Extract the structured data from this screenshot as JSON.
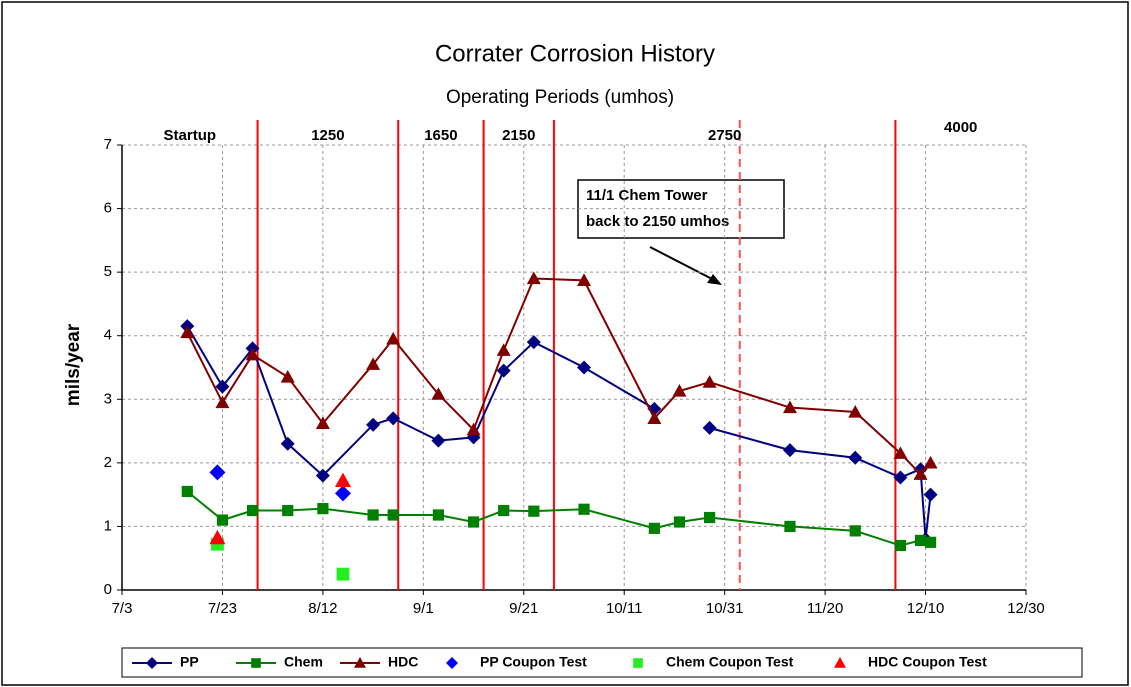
{
  "chart_data": {
    "type": "line",
    "title": "Corrater Corrosion History",
    "subtitle": "Operating Periods (umhos)",
    "y_label": "mils/year",
    "xlim": [
      "7/3",
      "12/30"
    ],
    "xticks": [
      "7/3",
      "7/23",
      "8/12",
      "9/1",
      "9/21",
      "10/11",
      "10/31",
      "11/20",
      "12/10",
      "12/30"
    ],
    "ylim": [
      0,
      7
    ],
    "yticks": [
      0,
      1,
      2,
      3,
      4,
      5,
      6,
      7
    ],
    "grid": true,
    "periods": [
      "Startup",
      "1250",
      "1650",
      "2150",
      "2750",
      "4000"
    ],
    "period_boundaries": [
      {
        "x": "7/30",
        "color": "#ff0000",
        "style": "solid"
      },
      {
        "x": "8/27",
        "color": "#ff0000",
        "style": "solid"
      },
      {
        "x": "9/13",
        "color": "#ff0000",
        "style": "solid"
      },
      {
        "x": "9/27",
        "color": "#ff0000",
        "style": "solid"
      },
      {
        "x": "12/4",
        "color": "#ff0000",
        "style": "solid"
      },
      {
        "x": "11/3",
        "color": "#ff5050",
        "style": "dashed"
      }
    ],
    "annotation": {
      "lines": [
        "11/1 Chem Tower",
        "back to 2150 umhos"
      ]
    },
    "legend": "bottom",
    "series": [
      {
        "name": "PP",
        "color": "#000080",
        "marker": "diamond",
        "line": true,
        "x": [
          "7/16",
          "7/23",
          "7/29",
          "8/5",
          "8/12",
          "8/22",
          "8/26",
          "9/4",
          "9/11",
          "9/17",
          "9/23",
          "10/3",
          "10/17",
          "10/22",
          "10/28",
          "11/13",
          "11/26",
          "12/5",
          "12/9",
          "12/10",
          "12/11"
        ],
        "values": [
          4.15,
          3.2,
          3.8,
          2.3,
          1.8,
          2.6,
          2.7,
          2.35,
          2.4,
          3.45,
          3.9,
          3.5,
          2.85,
          null,
          2.55,
          2.2,
          2.08,
          1.77,
          1.9,
          0.8,
          1.5
        ]
      },
      {
        "name": "Chem",
        "color": "#008000",
        "marker": "square",
        "line": true,
        "x": [
          "7/16",
          "7/23",
          "7/29",
          "8/5",
          "8/12",
          "8/22",
          "8/26",
          "9/4",
          "9/11",
          "9/17",
          "9/23",
          "10/3",
          "10/17",
          "10/22",
          "10/28",
          "11/13",
          "11/26",
          "12/5",
          "12/9",
          "12/11"
        ],
        "values": [
          1.55,
          1.1,
          1.25,
          1.25,
          1.28,
          1.18,
          1.18,
          1.18,
          1.07,
          1.25,
          1.24,
          1.27,
          0.97,
          1.07,
          1.14,
          1.0,
          0.93,
          0.7,
          0.78,
          0.75
        ]
      },
      {
        "name": "HDC",
        "color": "#800000",
        "marker": "triangle",
        "line": true,
        "x": [
          "7/16",
          "7/23",
          "7/29",
          "8/5",
          "8/12",
          "8/22",
          "8/26",
          "9/4",
          "9/11",
          "9/17",
          "9/23",
          "10/3",
          "10/17",
          "10/22",
          "10/28",
          "11/13",
          "11/26",
          "12/5",
          "12/9",
          "12/11"
        ],
        "values": [
          4.05,
          2.95,
          3.7,
          3.35,
          2.62,
          3.55,
          3.95,
          3.08,
          2.52,
          3.77,
          4.9,
          4.87,
          2.7,
          3.13,
          3.27,
          2.87,
          2.8,
          2.15,
          1.82,
          2.0
        ]
      },
      {
        "name": "PP Coupon Test",
        "color": "#0000ff",
        "marker": "diamond",
        "line": false,
        "x": [
          "7/22",
          "8/16"
        ],
        "values": [
          1.85,
          1.52
        ]
      },
      {
        "name": "Chem Coupon Test",
        "color": "#22ee22",
        "marker": "square",
        "line": false,
        "x": [
          "7/22",
          "8/16"
        ],
        "values": [
          0.72,
          0.25
        ]
      },
      {
        "name": "HDC Coupon Test",
        "color": "#ff0000",
        "marker": "triangle",
        "line": false,
        "x": [
          "7/22",
          "8/16"
        ],
        "values": [
          0.82,
          1.72
        ]
      }
    ]
  }
}
